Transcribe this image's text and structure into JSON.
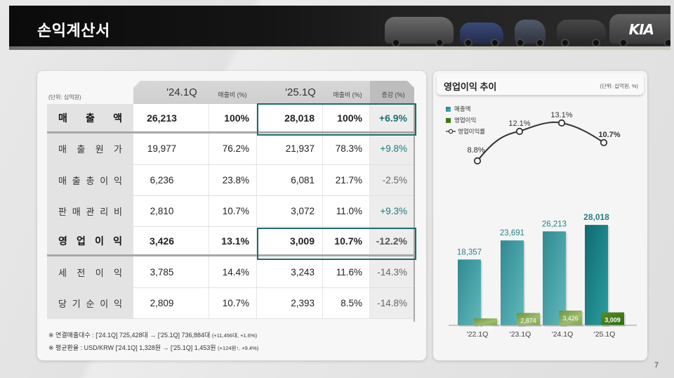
{
  "header": {
    "title": "손익계산서",
    "brand_logo": "KIA"
  },
  "table": {
    "unit_label": "(단위: 십억원)",
    "columns": [
      {
        "label": "'24.1Q",
        "type": "period"
      },
      {
        "label": "매출비 (%)",
        "type": "ratio"
      },
      {
        "label": "'25.1Q",
        "type": "period"
      },
      {
        "label": "매출비 (%)",
        "type": "ratio"
      },
      {
        "label": "증감 (%)",
        "type": "change"
      }
    ],
    "rows": [
      {
        "label_chars": [
          "매",
          "출",
          "액"
        ],
        "label": "매출액",
        "v24": "26,213",
        "r24": "100%",
        "v25": "28,018",
        "r25": "100%",
        "chg": "+6.9%",
        "strong": true,
        "highlight": true
      },
      {
        "label_chars": [
          "매",
          "출",
          "원",
          "가"
        ],
        "label": "매출원가",
        "v24": "19,977",
        "r24": "76.2%",
        "v25": "21,937",
        "r25": "78.3%",
        "chg": "+9.8%"
      },
      {
        "label_chars": [
          "매",
          "출",
          "총",
          "이",
          "익"
        ],
        "label": "매출총이익",
        "v24": "6,236",
        "r24": "23.8%",
        "v25": "6,081",
        "r25": "21.7%",
        "chg": "-2.5%"
      },
      {
        "label_chars": [
          "판",
          "매",
          "관",
          "리",
          "비"
        ],
        "label": "판매관리비",
        "v24": "2,810",
        "r24": "10.7%",
        "v25": "3,072",
        "r25": "11.0%",
        "chg": "+9.3%"
      },
      {
        "label_chars": [
          "영",
          "업",
          "이",
          "익"
        ],
        "label": "영업이익",
        "v24": "3,426",
        "r24": "13.1%",
        "v25": "3,009",
        "r25": "10.7%",
        "chg": "-12.2%",
        "strong": true,
        "highlight": true
      },
      {
        "label_chars": [
          "세",
          "전",
          "이",
          "익"
        ],
        "label": "세전이익",
        "v24": "3,785",
        "r24": "14.4%",
        "v25": "3,243",
        "r25": "11.6%",
        "chg": "-14.3%"
      },
      {
        "label_chars": [
          "당",
          "기",
          "순",
          "이",
          "익"
        ],
        "label": "당기순이익",
        "v24": "2,809",
        "r24": "10.7%",
        "v25": "2,393",
        "r25": "8.5%",
        "chg": "-14.8%"
      }
    ],
    "notes": [
      {
        "main": "※  연결매출대수 : ['24.1Q] 725,428대  →  ['25.1Q] 736,884대 ",
        "small": "(+11,456대, +1.6%)"
      },
      {
        "main": "※  평균환율 : USD/KRW ['24.1Q] 1,328원  →  ['25.1Q] 1,453원 ",
        "small": "(+124원↑, +9.4%)"
      }
    ]
  },
  "chart_panel": {
    "title": "영업이익 추이",
    "unit": "(단위: 십억원, %)",
    "legend": [
      {
        "label": "매출액",
        "icon": "square-teal",
        "color": "#2a8f98"
      },
      {
        "label": "영업이익",
        "icon": "square-green",
        "color": "#3e7a12"
      },
      {
        "label": "영업이익률",
        "icon": "line-circle-marker",
        "color": "#333333"
      }
    ]
  },
  "chart_data": {
    "type": "bar",
    "title": "영업이익 추이",
    "subtitle": "(단위: 십억원, %)",
    "categories": [
      "'22.1Q",
      "'23.1Q",
      "'24.1Q",
      "'25.1Q"
    ],
    "series": [
      {
        "name": "매출액",
        "type": "bar",
        "values": [
          18357,
          23691,
          26213,
          28018
        ],
        "labels": [
          "18,357",
          "23,691",
          "26,213",
          "28,018"
        ],
        "color": "#2a8f98"
      },
      {
        "name": "영업이익",
        "type": "bar",
        "values": [
          1606,
          2874,
          3426,
          3009
        ],
        "labels": [
          "1,606",
          "2,874",
          "3,426",
          "3,009"
        ],
        "color": "#6f9a3e"
      },
      {
        "name": "영업이익률",
        "type": "line",
        "values": [
          8.8,
          12.1,
          13.1,
          10.7
        ],
        "labels": [
          "8.8%",
          "12.1%",
          "13.1%",
          "10.7%"
        ],
        "color": "#333333"
      }
    ],
    "xlabel": "",
    "ylabel": "",
    "grid": false,
    "legend_position": "top-left"
  },
  "page": {
    "number": "7"
  },
  "colors": {
    "accent_teal": "#1e6b6b",
    "positive": "#1f7a7a",
    "negative": "#666666"
  }
}
